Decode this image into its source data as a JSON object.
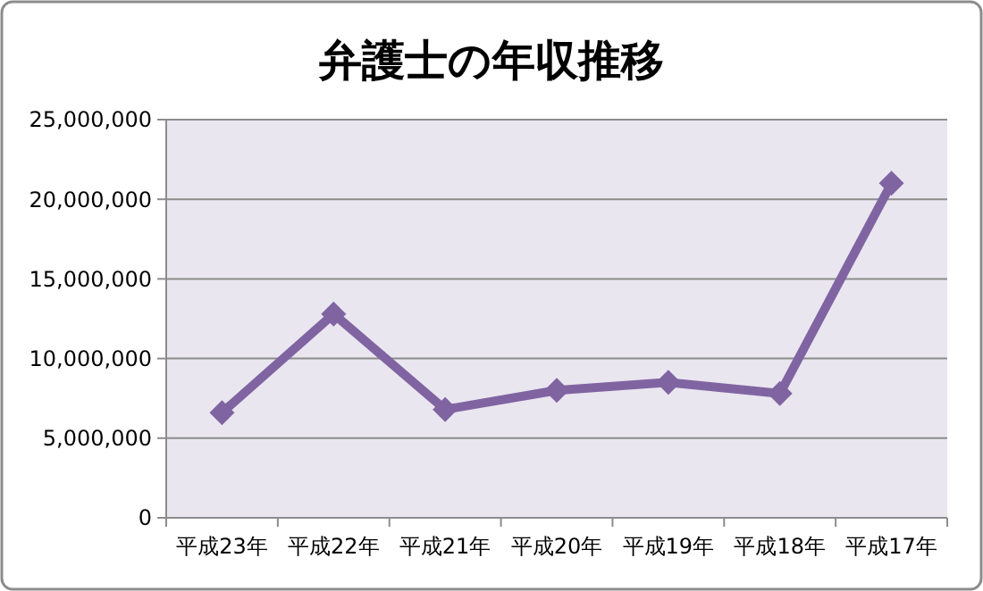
{
  "chart_data": {
    "type": "line",
    "title": "弁護士の年収推移",
    "categories": [
      "平成23年",
      "平成22年",
      "平成21年",
      "平成20年",
      "平成19年",
      "平成18年",
      "平成17年"
    ],
    "series": [
      {
        "color": "#8064a2",
        "values": [
          6600000,
          12800000,
          6800000,
          8000000,
          8500000,
          7800000,
          21000000
        ]
      }
    ],
    "ylim": [
      0,
      25000000
    ],
    "yticks": [
      {
        "value": 0,
        "label": "0"
      },
      {
        "value": 5000000,
        "label": "5,000,000"
      },
      {
        "value": 10000000,
        "label": "10,000,000"
      },
      {
        "value": 15000000,
        "label": "15,000,000"
      },
      {
        "value": 20000000,
        "label": "20,000,000"
      },
      {
        "value": 25000000,
        "label": "25,000,000"
      }
    ],
    "grid": "y",
    "marker": "diamond",
    "line_style": "solid"
  }
}
